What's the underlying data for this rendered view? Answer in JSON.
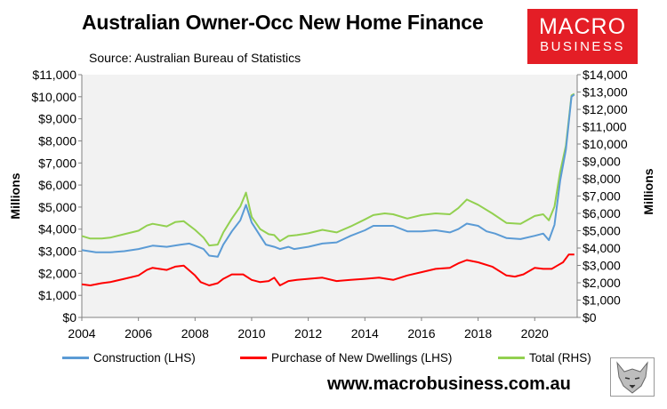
{
  "header": {
    "title": "Australian Owner-Occ New Home Finance",
    "source": "Source: Australian Bureau of Statistics"
  },
  "logo": {
    "line1": "MACRO",
    "line2": "BUSINESS",
    "color": "#e41e26"
  },
  "footer": {
    "website": "www.macrobusiness.com.au"
  },
  "chart_data": {
    "type": "line",
    "xlim": [
      2004,
      2021.5
    ],
    "x_ticks": [
      "2004",
      "2006",
      "2008",
      "2010",
      "2012",
      "2014",
      "2016",
      "2018",
      "2020"
    ],
    "y_left": {
      "label": "Millions",
      "lim": [
        0,
        11000
      ],
      "ticks": [
        "$0",
        "$1,000",
        "$2,000",
        "$3,000",
        "$4,000",
        "$5,000",
        "$6,000",
        "$7,000",
        "$8,000",
        "$9,000",
        "$10,000",
        "$11,000"
      ]
    },
    "y_right": {
      "label": "Millions",
      "lim": [
        0,
        14000
      ],
      "ticks": [
        "$0",
        "$1,000",
        "$2,000",
        "$3,000",
        "$4,000",
        "$5,000",
        "$6,000",
        "$7,000",
        "$8,000",
        "$9,000",
        "$10,000",
        "$11,000",
        "$12,000",
        "$13,000",
        "$14,000"
      ]
    },
    "grid": false,
    "legend_position": "bottom",
    "series": [
      {
        "name": "Construction (LHS)",
        "axis": "left",
        "color": "#5b9bd5",
        "points": [
          [
            2004.0,
            3050
          ],
          [
            2004.5,
            2950
          ],
          [
            2005.0,
            2950
          ],
          [
            2005.5,
            3000
          ],
          [
            2006.0,
            3100
          ],
          [
            2006.5,
            3250
          ],
          [
            2007.0,
            3200
          ],
          [
            2007.5,
            3300
          ],
          [
            2007.8,
            3350
          ],
          [
            2008.0,
            3250
          ],
          [
            2008.3,
            3100
          ],
          [
            2008.5,
            2800
          ],
          [
            2008.8,
            2750
          ],
          [
            2009.0,
            3300
          ],
          [
            2009.3,
            3900
          ],
          [
            2009.6,
            4400
          ],
          [
            2009.8,
            5100
          ],
          [
            2010.0,
            4300
          ],
          [
            2010.3,
            3700
          ],
          [
            2010.5,
            3300
          ],
          [
            2010.8,
            3200
          ],
          [
            2011.0,
            3100
          ],
          [
            2011.3,
            3200
          ],
          [
            2011.5,
            3100
          ],
          [
            2012.0,
            3200
          ],
          [
            2012.5,
            3350
          ],
          [
            2013.0,
            3400
          ],
          [
            2013.5,
            3700
          ],
          [
            2014.0,
            3950
          ],
          [
            2014.3,
            4150
          ],
          [
            2014.7,
            4150
          ],
          [
            2015.0,
            4150
          ],
          [
            2015.5,
            3900
          ],
          [
            2016.0,
            3900
          ],
          [
            2016.5,
            3950
          ],
          [
            2017.0,
            3850
          ],
          [
            2017.3,
            4000
          ],
          [
            2017.6,
            4250
          ],
          [
            2018.0,
            4150
          ],
          [
            2018.3,
            3900
          ],
          [
            2018.6,
            3800
          ],
          [
            2019.0,
            3600
          ],
          [
            2019.5,
            3550
          ],
          [
            2020.0,
            3700
          ],
          [
            2020.3,
            3800
          ],
          [
            2020.5,
            3500
          ],
          [
            2020.7,
            4200
          ],
          [
            2020.9,
            6200
          ],
          [
            2021.1,
            7600
          ],
          [
            2021.3,
            10000
          ],
          [
            2021.4,
            10100
          ]
        ]
      },
      {
        "name": "Purchase of New Dwellings (LHS)",
        "axis": "left",
        "color": "#ff0000",
        "points": [
          [
            2004.0,
            1500
          ],
          [
            2004.3,
            1450
          ],
          [
            2004.7,
            1550
          ],
          [
            2005.0,
            1600
          ],
          [
            2005.5,
            1750
          ],
          [
            2006.0,
            1900
          ],
          [
            2006.3,
            2150
          ],
          [
            2006.5,
            2250
          ],
          [
            2007.0,
            2150
          ],
          [
            2007.3,
            2300
          ],
          [
            2007.6,
            2350
          ],
          [
            2008.0,
            1900
          ],
          [
            2008.2,
            1600
          ],
          [
            2008.5,
            1450
          ],
          [
            2008.8,
            1550
          ],
          [
            2009.0,
            1750
          ],
          [
            2009.3,
            1950
          ],
          [
            2009.7,
            1950
          ],
          [
            2010.0,
            1700
          ],
          [
            2010.3,
            1600
          ],
          [
            2010.6,
            1650
          ],
          [
            2010.8,
            1800
          ],
          [
            2011.0,
            1450
          ],
          [
            2011.3,
            1650
          ],
          [
            2011.6,
            1700
          ],
          [
            2012.0,
            1750
          ],
          [
            2012.5,
            1800
          ],
          [
            2013.0,
            1650
          ],
          [
            2013.5,
            1700
          ],
          [
            2014.0,
            1750
          ],
          [
            2014.5,
            1800
          ],
          [
            2015.0,
            1700
          ],
          [
            2015.5,
            1900
          ],
          [
            2016.0,
            2050
          ],
          [
            2016.5,
            2200
          ],
          [
            2017.0,
            2250
          ],
          [
            2017.3,
            2450
          ],
          [
            2017.6,
            2600
          ],
          [
            2018.0,
            2500
          ],
          [
            2018.5,
            2300
          ],
          [
            2019.0,
            1900
          ],
          [
            2019.3,
            1850
          ],
          [
            2019.6,
            1950
          ],
          [
            2020.0,
            2250
          ],
          [
            2020.3,
            2200
          ],
          [
            2020.6,
            2200
          ],
          [
            2020.8,
            2350
          ],
          [
            2021.0,
            2500
          ],
          [
            2021.2,
            2850
          ],
          [
            2021.4,
            2850
          ]
        ]
      },
      {
        "name": "Total (RHS)",
        "axis": "right",
        "color": "#92d050",
        "points": [
          [
            2004.0,
            4700
          ],
          [
            2004.3,
            4550
          ],
          [
            2004.7,
            4550
          ],
          [
            2005.0,
            4600
          ],
          [
            2005.5,
            4800
          ],
          [
            2006.0,
            5000
          ],
          [
            2006.3,
            5300
          ],
          [
            2006.5,
            5400
          ],
          [
            2007.0,
            5250
          ],
          [
            2007.3,
            5500
          ],
          [
            2007.6,
            5550
          ],
          [
            2008.0,
            5050
          ],
          [
            2008.3,
            4600
          ],
          [
            2008.5,
            4150
          ],
          [
            2008.8,
            4200
          ],
          [
            2009.0,
            4900
          ],
          [
            2009.3,
            5700
          ],
          [
            2009.6,
            6400
          ],
          [
            2009.8,
            7200
          ],
          [
            2010.0,
            5800
          ],
          [
            2010.3,
            5100
          ],
          [
            2010.6,
            4800
          ],
          [
            2010.8,
            4750
          ],
          [
            2011.0,
            4400
          ],
          [
            2011.3,
            4700
          ],
          [
            2011.6,
            4750
          ],
          [
            2012.0,
            4850
          ],
          [
            2012.5,
            5050
          ],
          [
            2013.0,
            4900
          ],
          [
            2013.5,
            5250
          ],
          [
            2014.0,
            5650
          ],
          [
            2014.3,
            5900
          ],
          [
            2014.7,
            6000
          ],
          [
            2015.0,
            5950
          ],
          [
            2015.5,
            5700
          ],
          [
            2016.0,
            5900
          ],
          [
            2016.5,
            6000
          ],
          [
            2017.0,
            5950
          ],
          [
            2017.3,
            6300
          ],
          [
            2017.6,
            6800
          ],
          [
            2018.0,
            6500
          ],
          [
            2018.5,
            6000
          ],
          [
            2019.0,
            5450
          ],
          [
            2019.5,
            5400
          ],
          [
            2020.0,
            5850
          ],
          [
            2020.3,
            5950
          ],
          [
            2020.5,
            5600
          ],
          [
            2020.7,
            6400
          ],
          [
            2020.9,
            8400
          ],
          [
            2021.1,
            9900
          ],
          [
            2021.3,
            12800
          ],
          [
            2021.4,
            12900
          ]
        ]
      }
    ]
  }
}
